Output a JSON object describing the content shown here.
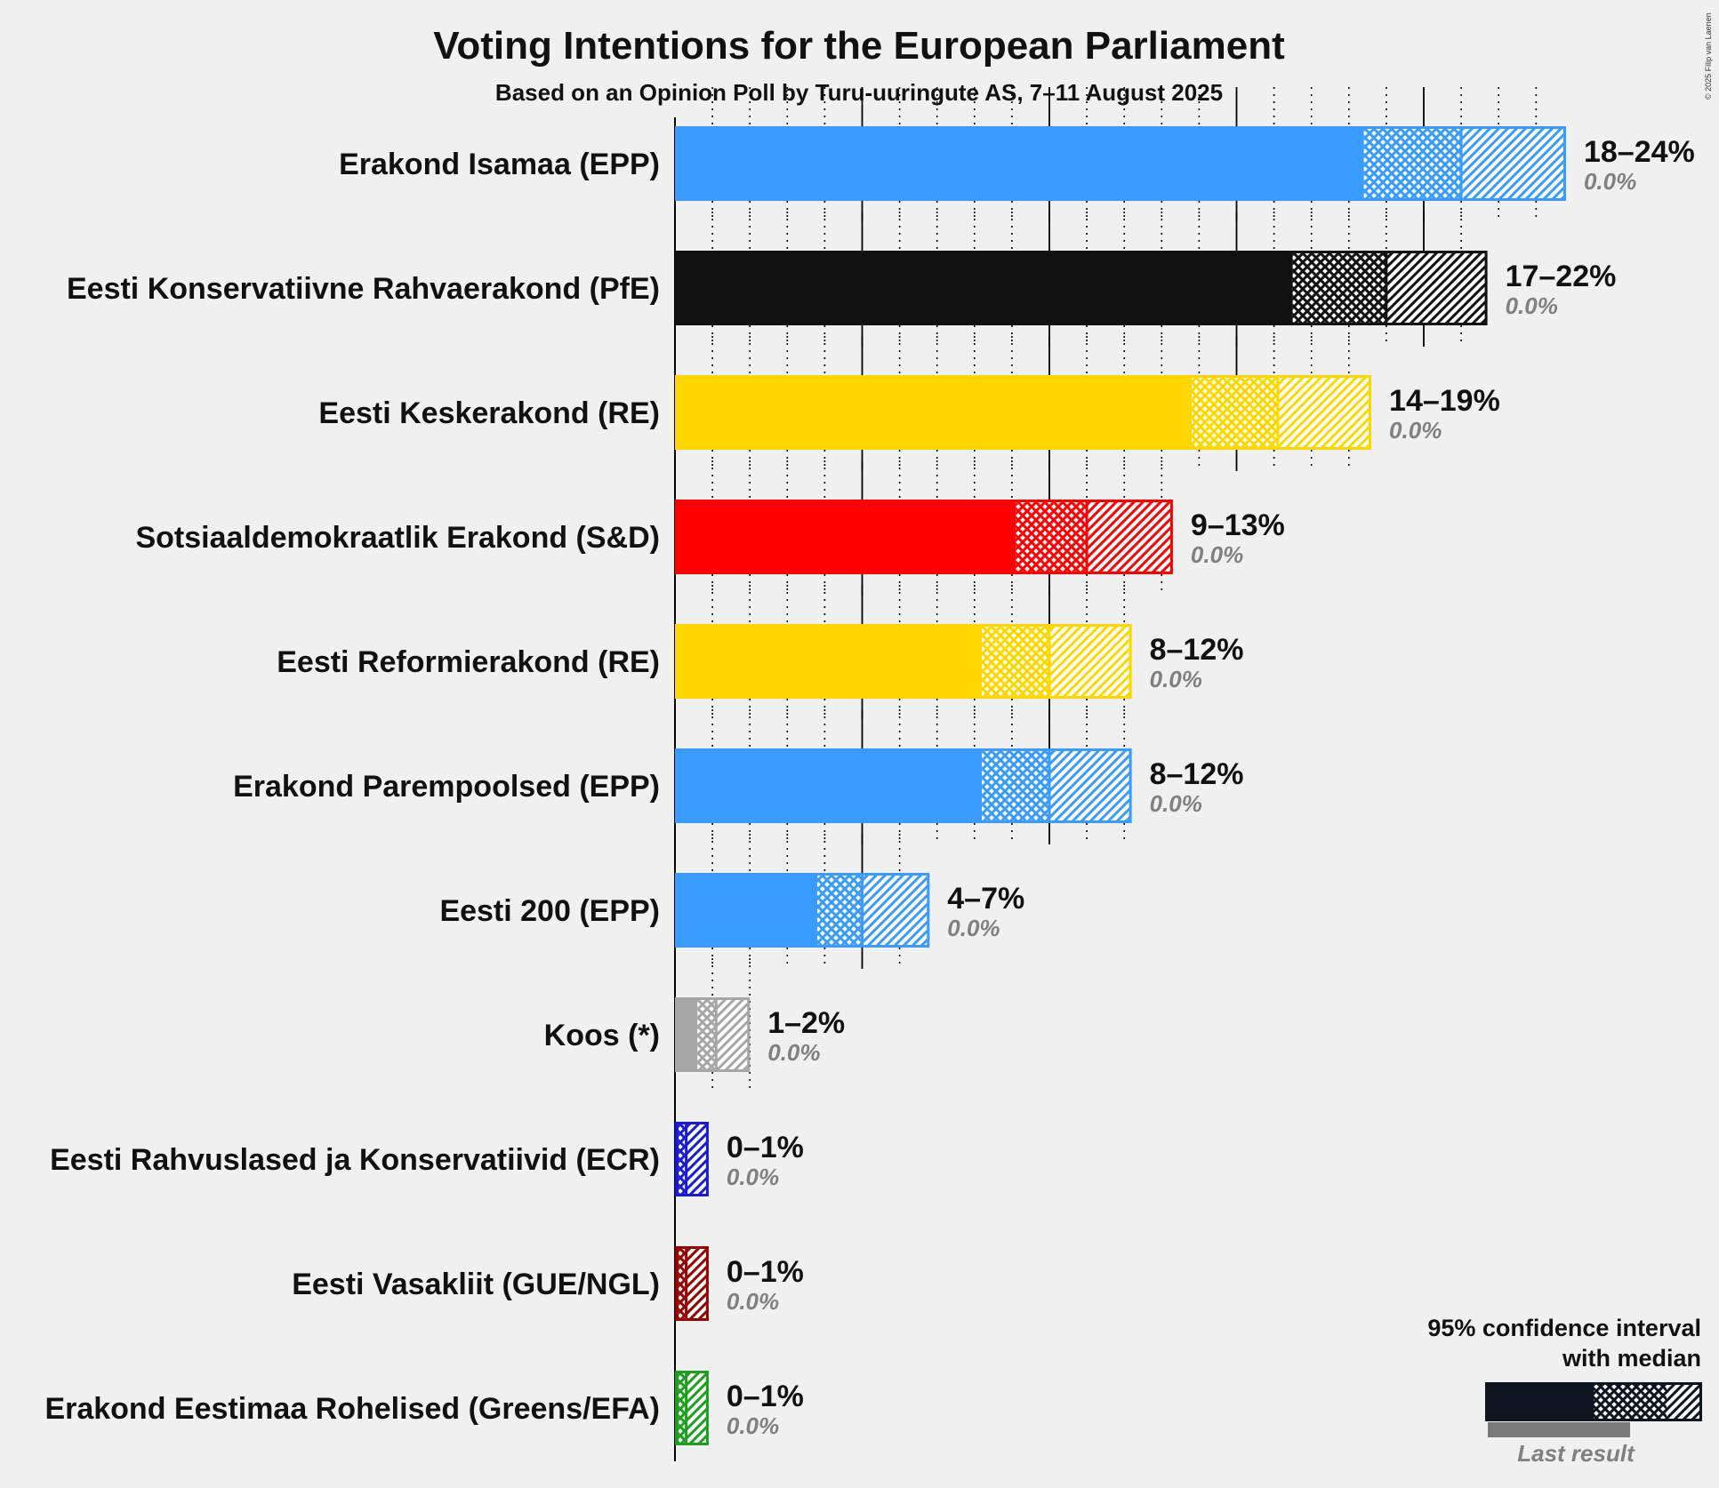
{
  "chart_data": {
    "type": "bar",
    "title": "Voting Intentions for the European Parliament",
    "subtitle": "Based on an Opinion Poll by Turu-uuringute AS, 7–11 August 2025",
    "copyright": "© 2025 Filip van Laenen",
    "x_range": [
      0,
      24
    ],
    "legend": {
      "line1": "95% confidence interval",
      "line2": "with median",
      "last_result": "Last result",
      "placement": "bottom-right",
      "color": "#0d1520"
    },
    "parties": [
      {
        "name": "Erakond Isamaa (EPP)",
        "color": "#3a9bff",
        "ci_low": 18.4,
        "median": 21.0,
        "ci_high": 23.8,
        "range_label": "18–24%",
        "last_result": "0.0%",
        "last_value": 0.0
      },
      {
        "name": "Eesti Konservatiivne Rahvaerakond (PfE)",
        "color": "#111111",
        "ci_low": 16.5,
        "median": 19.0,
        "ci_high": 21.7,
        "range_label": "17–22%",
        "last_result": "0.0%",
        "last_value": 0.0
      },
      {
        "name": "Eesti Keskerakond (RE)",
        "color": "#ffd700",
        "ci_low": 13.8,
        "median": 16.1,
        "ci_high": 18.6,
        "range_label": "14–19%",
        "last_result": "0.0%",
        "last_value": 0.0
      },
      {
        "name": "Sotsiaaldemokraatlik Erakond (S&D)",
        "color": "#ff0000",
        "ci_low": 9.1,
        "median": 11.0,
        "ci_high": 13.3,
        "range_label": "9–13%",
        "last_result": "0.0%",
        "last_value": 0.0
      },
      {
        "name": "Eesti Reformierakond (RE)",
        "color": "#ffd700",
        "ci_low": 8.2,
        "median": 10.0,
        "ci_high": 12.2,
        "range_label": "8–12%",
        "last_result": "0.0%",
        "last_value": 0.0
      },
      {
        "name": "Erakond Parempoolsed (EPP)",
        "color": "#3a9bff",
        "ci_low": 8.2,
        "median": 10.0,
        "ci_high": 12.2,
        "range_label": "8–12%",
        "last_result": "0.0%",
        "last_value": 0.0
      },
      {
        "name": "Eesti 200 (EPP)",
        "color": "#3a9bff",
        "ci_low": 3.8,
        "median": 5.0,
        "ci_high": 6.8,
        "range_label": "4–7%",
        "last_result": "0.0%",
        "last_value": 0.0
      },
      {
        "name": "Koos (*)",
        "color": "#a6a6a6",
        "ci_low": 0.6,
        "median": 1.1,
        "ci_high": 2.0,
        "range_label": "1–2%",
        "last_result": "0.0%",
        "last_value": 0.0
      },
      {
        "name": "Eesti Rahvuslased ja Konservatiivid (ECR)",
        "color": "#1a1ad6",
        "ci_low": 0.1,
        "median": 0.3,
        "ci_high": 0.9,
        "range_label": "0–1%",
        "last_result": "0.0%",
        "last_value": 0.0
      },
      {
        "name": "Eesti Vasakliit (GUE/NGL)",
        "color": "#990000",
        "ci_low": 0.1,
        "median": 0.3,
        "ci_high": 0.9,
        "range_label": "0–1%",
        "last_result": "0.0%",
        "last_value": 0.0
      },
      {
        "name": "Erakond Eestimaa Rohelised (Greens/EFA)",
        "color": "#1ca01c",
        "ci_low": 0.1,
        "median": 0.3,
        "ci_high": 0.9,
        "range_label": "0–1%",
        "last_result": "0.0%",
        "last_value": 0.0
      }
    ]
  }
}
